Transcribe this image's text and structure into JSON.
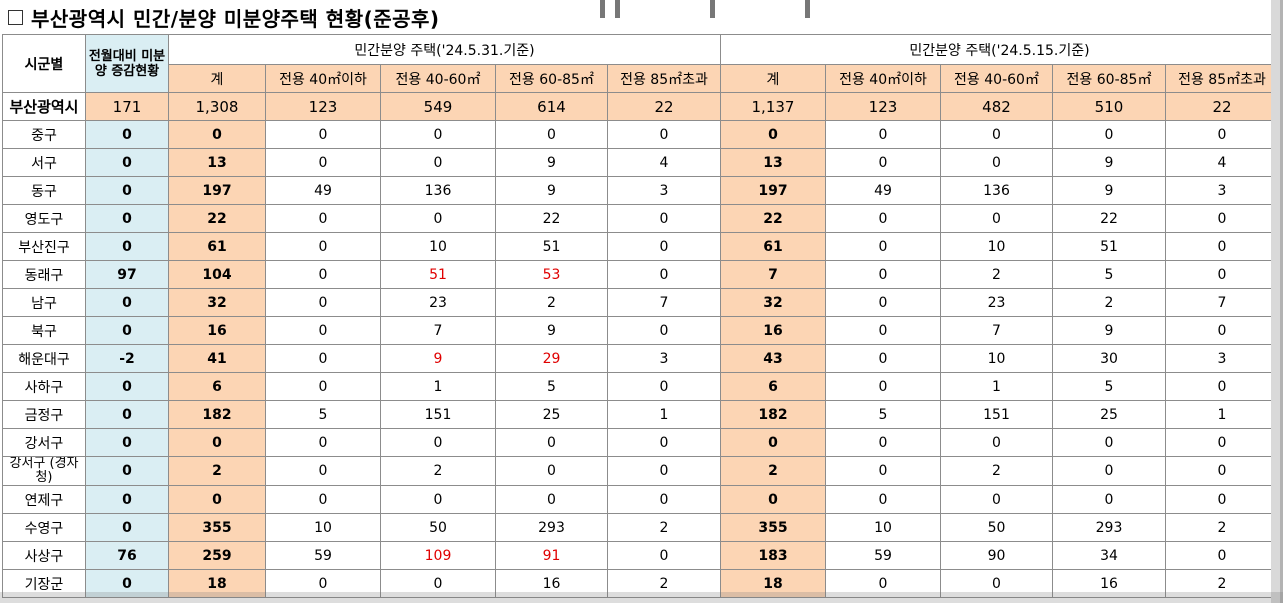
{
  "title": "부산광역시 민간/분양 미분양주택 현황(준공후)",
  "header": {
    "region": "시군별",
    "diff": "전월대비 미분양 증감현황",
    "group_a": "민간분양 주택('24.5.31.기준)",
    "group_b": "민간분양 주택('24.5.15.기준)",
    "sub": [
      "계",
      "전용 40㎡이하",
      "전용 40-60㎡",
      "전용 60-85㎡",
      "전용 85㎡초과"
    ]
  },
  "total": {
    "name": "부산광역시",
    "diff": "171",
    "a": [
      "1,308",
      "123",
      "549",
      "614",
      "22"
    ],
    "b": [
      "1,137",
      "123",
      "482",
      "510",
      "22"
    ]
  },
  "rows": [
    {
      "name": "중구",
      "diff": "0",
      "a": [
        "0",
        "0",
        "0",
        "0",
        "0"
      ],
      "b": [
        "0",
        "0",
        "0",
        "0",
        "0"
      ]
    },
    {
      "name": "서구",
      "diff": "0",
      "a": [
        "13",
        "0",
        "0",
        "9",
        "4"
      ],
      "b": [
        "13",
        "0",
        "0",
        "9",
        "4"
      ]
    },
    {
      "name": "동구",
      "diff": "0",
      "a": [
        "197",
        "49",
        "136",
        "9",
        "3"
      ],
      "b": [
        "197",
        "49",
        "136",
        "9",
        "3"
      ]
    },
    {
      "name": "영도구",
      "diff": "0",
      "a": [
        "22",
        "0",
        "0",
        "22",
        "0"
      ],
      "b": [
        "22",
        "0",
        "0",
        "22",
        "0"
      ]
    },
    {
      "name": "부산진구",
      "diff": "0",
      "a": [
        "61",
        "0",
        "10",
        "51",
        "0"
      ],
      "b": [
        "61",
        "0",
        "10",
        "51",
        "0"
      ]
    },
    {
      "name": "동래구",
      "diff": "97",
      "a": [
        "104",
        "0",
        "51",
        "53",
        "0"
      ],
      "b": [
        "7",
        "0",
        "2",
        "5",
        "0"
      ]
    },
    {
      "name": "남구",
      "diff": "0",
      "a": [
        "32",
        "0",
        "23",
        "2",
        "7"
      ],
      "b": [
        "32",
        "0",
        "23",
        "2",
        "7"
      ]
    },
    {
      "name": "북구",
      "diff": "0",
      "a": [
        "16",
        "0",
        "7",
        "9",
        "0"
      ],
      "b": [
        "16",
        "0",
        "7",
        "9",
        "0"
      ]
    },
    {
      "name": "해운대구",
      "diff": "-2",
      "a": [
        "41",
        "0",
        "9",
        "29",
        "3"
      ],
      "b": [
        "43",
        "0",
        "10",
        "30",
        "3"
      ]
    },
    {
      "name": "사하구",
      "diff": "0",
      "a": [
        "6",
        "0",
        "1",
        "5",
        "0"
      ],
      "b": [
        "6",
        "0",
        "1",
        "5",
        "0"
      ]
    },
    {
      "name": "금정구",
      "diff": "0",
      "a": [
        "182",
        "5",
        "151",
        "25",
        "1"
      ],
      "b": [
        "182",
        "5",
        "151",
        "25",
        "1"
      ]
    },
    {
      "name": "강서구",
      "diff": "0",
      "a": [
        "0",
        "0",
        "0",
        "0",
        "0"
      ],
      "b": [
        "0",
        "0",
        "0",
        "0",
        "0"
      ]
    },
    {
      "name": "강서구\n(경자청)",
      "diff": "0",
      "a": [
        "2",
        "0",
        "2",
        "0",
        "0"
      ],
      "b": [
        "2",
        "0",
        "2",
        "0",
        "0"
      ]
    },
    {
      "name": "연제구",
      "diff": "0",
      "a": [
        "0",
        "0",
        "0",
        "0",
        "0"
      ],
      "b": [
        "0",
        "0",
        "0",
        "0",
        "0"
      ]
    },
    {
      "name": "수영구",
      "diff": "0",
      "a": [
        "355",
        "10",
        "50",
        "293",
        "2"
      ],
      "b": [
        "355",
        "10",
        "50",
        "293",
        "2"
      ]
    },
    {
      "name": "사상구",
      "diff": "76",
      "a": [
        "259",
        "59",
        "109",
        "91",
        "0"
      ],
      "b": [
        "183",
        "59",
        "90",
        "34",
        "0"
      ]
    },
    {
      "name": "기장군",
      "diff": "0",
      "a": [
        "18",
        "0",
        "0",
        "16",
        "2"
      ],
      "b": [
        "18",
        "0",
        "0",
        "16",
        "2"
      ]
    }
  ],
  "highlight_color": "#e00000"
}
